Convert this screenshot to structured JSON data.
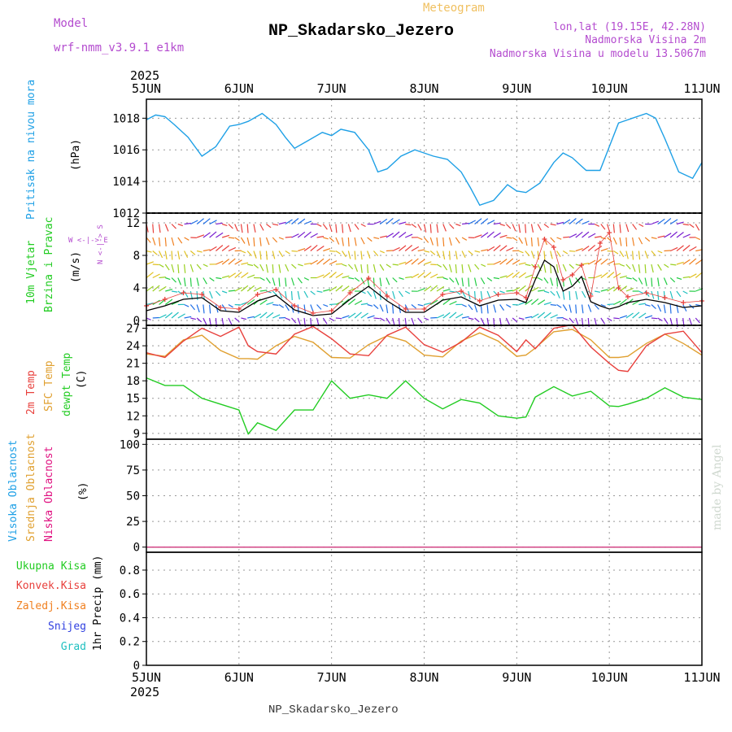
{
  "header": {
    "model_label": "Model",
    "model_name": "wrf-nmm_v3.9.1 e1km",
    "meteogram_label": "Meteogram",
    "station": "NP_Skadarsko_Jezero",
    "lonlat": "lon,lat (19.15E, 42.28N)",
    "elevation": "Nadmorska Visina 2m",
    "model_elevation": "Nadmorska Visina u modelu 13.5067m",
    "year_top": "2025",
    "year_bottom": "2025",
    "footer_station": "NP_Skadarsko_Jezero",
    "watermark": "made by Angel"
  },
  "colors": {
    "pressure": "#1ea0e6",
    "temp2m": "#e8403c",
    "sfc_temp": "#e0a030",
    "dewpoint": "#22cc22",
    "wind_speed": "#000000",
    "wind_gust": "#e8403c",
    "high_cloud": "#1ea0e6",
    "mid_cloud": "#e0a030",
    "low_cloud": "#e01080",
    "total_precip": "#22cc22",
    "conv_precip": "#e8403c",
    "frozen_precip": "#f08020",
    "snow": "#3040e0",
    "hail": "#20c0c0",
    "header_purple": "#b44ccf",
    "meteogram_orange": "#f0c060"
  },
  "x_ticks": [
    "5JUN",
    "6JUN",
    "7JUN",
    "8JUN",
    "9JUN",
    "10JUN",
    "11JUN"
  ],
  "chart_data": [
    {
      "type": "line",
      "ylabel_parts": [
        "Pritisak na nivou mora",
        "(hPa)"
      ],
      "ylim": [
        1012,
        1019.2
      ],
      "yticks": [
        1012,
        1014,
        1016,
        1018
      ],
      "x": [
        0,
        0.1,
        0.2,
        0.3,
        0.45,
        0.6,
        0.75,
        0.9,
        1.0,
        1.1,
        1.25,
        1.4,
        1.5,
        1.6,
        1.75,
        1.9,
        2.0,
        2.1,
        2.25,
        2.4,
        2.5,
        2.6,
        2.75,
        2.9,
        3.0,
        3.1,
        3.25,
        3.4,
        3.5,
        3.6,
        3.75,
        3.9,
        4.0,
        4.1,
        4.25,
        4.4,
        4.5,
        4.6,
        4.75,
        4.9,
        5.0,
        5.1,
        5.25,
        5.4,
        5.5,
        5.6,
        5.75,
        5.9,
        6.0
      ],
      "series": [
        {
          "values": [
            1017.9,
            1018.2,
            1018.1,
            1017.6,
            1016.8,
            1015.6,
            1016.2,
            1017.5,
            1017.6,
            1017.8,
            1018.3,
            1017.6,
            1016.8,
            1016.1,
            1016.6,
            1017.1,
            1016.9,
            1017.3,
            1017.1,
            1016.0,
            1014.6,
            1014.8,
            1015.6,
            1016.0,
            1015.8,
            1015.6,
            1015.4,
            1014.6,
            1013.6,
            1012.5,
            1012.8,
            1013.8,
            1013.4,
            1013.3,
            1013.9,
            1015.2,
            1015.8,
            1015.5,
            1014.7,
            1014.7,
            1016.2,
            1017.7,
            1018.0,
            1018.3,
            1018.0,
            1016.7,
            1014.6,
            1014.2,
            1015.2
          ]
        }
      ]
    },
    {
      "type": "line",
      "ylabel_parts": [
        "10m Vjetar",
        "Brzina i Pravac",
        "(m/s)"
      ],
      "compass": "W <-|-> E",
      "compass_ns": "N <-|-> S",
      "ylim": [
        -0.6,
        13.2
      ],
      "yticks": [
        0,
        4,
        8,
        12
      ],
      "x": [
        0,
        0.2,
        0.4,
        0.6,
        0.8,
        1.0,
        1.2,
        1.4,
        1.6,
        1.8,
        2.0,
        2.2,
        2.4,
        2.6,
        2.8,
        3.0,
        3.2,
        3.4,
        3.6,
        3.8,
        4.0,
        4.1,
        4.2,
        4.3,
        4.4,
        4.5,
        4.6,
        4.7,
        4.8,
        4.9,
        5.0,
        5.1,
        5.2,
        5.4,
        5.6,
        5.8,
        6.0
      ],
      "series": [
        {
          "name": "speed",
          "values": [
            1.2,
            1.8,
            2.6,
            2.8,
            1.2,
            1.0,
            2.4,
            3.1,
            1.3,
            0.6,
            0.8,
            2.6,
            4.2,
            2.4,
            1.0,
            1.0,
            2.5,
            2.9,
            1.8,
            2.5,
            2.6,
            2.2,
            5.0,
            7.4,
            6.6,
            3.6,
            4.2,
            5.4,
            2.3,
            1.8,
            1.4,
            1.7,
            2.2,
            2.6,
            2.2,
            1.6,
            1.8
          ]
        },
        {
          "name": "gust",
          "values": [
            1.8,
            2.6,
            3.4,
            3.2,
            1.6,
            1.4,
            3.2,
            3.8,
            1.8,
            0.9,
            1.2,
            3.4,
            5.2,
            3.0,
            1.4,
            1.4,
            3.2,
            3.6,
            2.4,
            3.2,
            3.4,
            2.8,
            6.6,
            10.0,
            9.0,
            5.0,
            5.6,
            6.8,
            3.0,
            9.5,
            10.8,
            4.0,
            2.9,
            3.4,
            2.8,
            2.2,
            2.4
          ]
        }
      ]
    },
    {
      "type": "line",
      "ylabel_parts": [
        "2m Temp",
        "SFC Temp",
        "dewpt Temp",
        "(C)"
      ],
      "ylim": [
        8,
        27.5
      ],
      "yticks": [
        9,
        12,
        15,
        18,
        21,
        24,
        27
      ],
      "x": [
        0,
        0.2,
        0.4,
        0.6,
        0.8,
        1.0,
        1.1,
        1.2,
        1.4,
        1.6,
        1.8,
        2.0,
        2.2,
        2.4,
        2.6,
        2.8,
        3.0,
        3.2,
        3.4,
        3.6,
        3.8,
        4.0,
        4.1,
        4.2,
        4.4,
        4.6,
        4.8,
        5.0,
        5.1,
        5.2,
        5.4,
        5.6,
        5.8,
        6.0
      ],
      "series": [
        {
          "name": "2m",
          "values": [
            22.8,
            22.0,
            24.8,
            27.0,
            25.6,
            27.2,
            24.0,
            23.0,
            22.6,
            26.0,
            27.3,
            25.2,
            22.6,
            22.3,
            25.8,
            27.2,
            24.2,
            22.9,
            24.6,
            27.2,
            25.8,
            23.0,
            25.0,
            23.5,
            27.0,
            27.6,
            23.8,
            21.0,
            19.8,
            19.6,
            24.0,
            26.0,
            26.5,
            22.8
          ]
        },
        {
          "name": "sfc",
          "values": [
            22.6,
            22.2,
            25.0,
            25.8,
            23.2,
            21.8,
            21.8,
            21.7,
            24.0,
            25.6,
            24.6,
            22.0,
            21.9,
            24.2,
            25.7,
            24.8,
            22.4,
            22.1,
            24.8,
            26.2,
            24.8,
            22.2,
            22.4,
            23.6,
            26.4,
            26.8,
            25.0,
            22.0,
            22.0,
            22.2,
            24.4,
            26.0,
            24.4,
            22.4
          ]
        },
        {
          "name": "dewpt",
          "values": [
            18.5,
            17.2,
            17.2,
            15.0,
            14.0,
            13.0,
            8.9,
            10.8,
            9.5,
            13.0,
            13.0,
            18.0,
            15.0,
            15.6,
            15.0,
            18.0,
            15.0,
            13.2,
            14.8,
            14.2,
            12.0,
            11.6,
            11.8,
            15.2,
            17.0,
            15.4,
            16.2,
            13.7,
            13.6,
            14.0,
            15.0,
            16.8,
            15.2,
            14.8
          ]
        }
      ]
    },
    {
      "type": "line",
      "ylabel_parts": [
        "Visoka Oblacnost",
        "Srednja Oblacnost",
        "Niska Oblacnost",
        "(%)"
      ],
      "ylim": [
        -5,
        105
      ],
      "yticks": [
        0,
        25,
        50,
        75,
        100
      ],
      "x": [
        0,
        6
      ],
      "series": [
        {
          "name": "high",
          "values": [
            0,
            0
          ]
        },
        {
          "name": "mid",
          "values": [
            0,
            0
          ]
        },
        {
          "name": "low",
          "values": [
            0,
            0
          ]
        }
      ]
    },
    {
      "type": "bar",
      "ylabel_parts": [
        "Ukupna Kisa",
        "Konvek.Kisa",
        "Zaledj.Kisa",
        "Snijeg",
        "Grad",
        "1hr Precip (mm)"
      ],
      "ylim": [
        0,
        0.95
      ],
      "yticks": [
        0,
        0.2,
        0.4,
        0.6,
        0.8
      ],
      "x": [
        0,
        6
      ],
      "series": [
        {
          "name": "total",
          "values": [
            0,
            0
          ]
        }
      ]
    }
  ]
}
